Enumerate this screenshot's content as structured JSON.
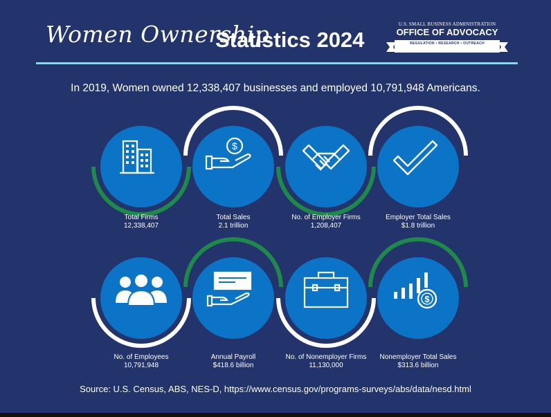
{
  "header": {
    "script_title": "Women Ownership",
    "title": "Statistics 2024"
  },
  "logo": {
    "top_line": "U.S. SMALL BUSINESS ADMINISTRATION",
    "main": "OFFICE OF ADVOCACY",
    "sub": "REGULATION  •  RESEARCH  •  OUTREACH"
  },
  "subtitle": "In 2019, Women owned 12,338,407 businesses and employed 10,791,948 Americans.",
  "stats": [
    {
      "label": "Total Firms",
      "value": "12,338,407",
      "icon": "buildings-icon",
      "arc": "green-bottom"
    },
    {
      "label": "Total Sales",
      "value": "2.1 trillion",
      "icon": "hand-coin-icon",
      "arc": "white-top"
    },
    {
      "label": "No. of Employer Firms",
      "value": "1,208,407",
      "icon": "handshake-icon",
      "arc": "green-bottom"
    },
    {
      "label": "Employer Total Sales",
      "value": "$1.8 trillion",
      "icon": "checkmark-icon",
      "arc": "white-top"
    },
    {
      "label": "No. of Employees",
      "value": "10,791,948",
      "icon": "people-icon",
      "arc": "white-bottom"
    },
    {
      "label": "Annual Payroll",
      "value": "$418.6 billion",
      "icon": "hand-check-icon",
      "arc": "green-top"
    },
    {
      "label": "No. of Nonemployer Firms",
      "value": "11,130,000",
      "icon": "briefcase-icon",
      "arc": "white-bottom"
    },
    {
      "label": "Nonemployer Total Sales",
      "value": "$313.6 billion",
      "icon": "bars-coin-icon",
      "arc": "green-top"
    }
  ],
  "colors": {
    "background": "#23336b",
    "circle": "#0c74c7",
    "green_arc": "#1e8a4a",
    "white_arc": "#ffffff",
    "rule": "#8fd3f4"
  },
  "source": "Source: U.S. Census, ABS, NES-D, https://www.census.gov/programs-surveys/abs/data/nesd.html"
}
